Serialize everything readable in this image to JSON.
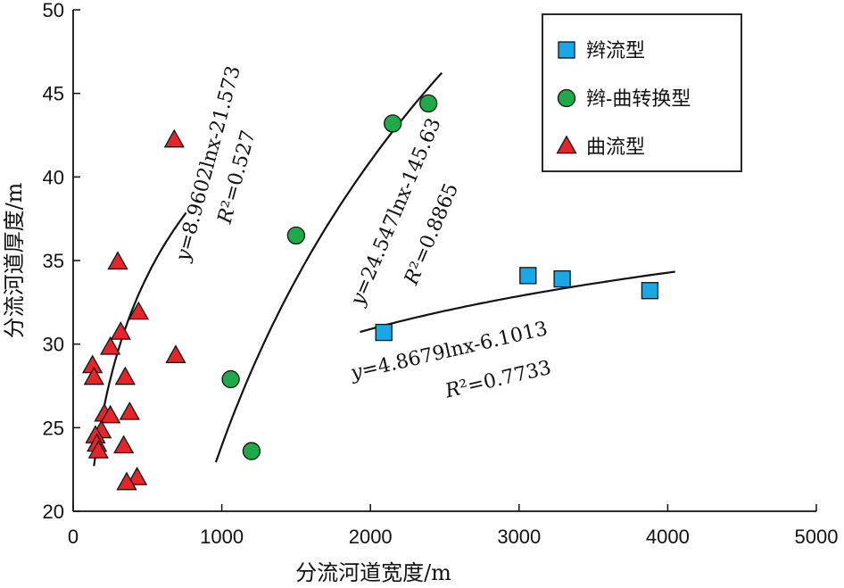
{
  "chart_data": {
    "type": "scatter",
    "xlabel": "分流河道宽度/m",
    "ylabel": "分流河道厚度/m",
    "xlim": [
      0,
      5000
    ],
    "ylim": [
      20,
      50
    ],
    "x_ticks": [
      0,
      1000,
      2000,
      3000,
      4000,
      5000
    ],
    "y_ticks": [
      20,
      25,
      30,
      35,
      40,
      45,
      50
    ],
    "grid": false,
    "legend_position": "top-right",
    "series": [
      {
        "name": "辫流型",
        "marker": "square",
        "color": "#19a7e6",
        "points": [
          [
            2090,
            30.7
          ],
          [
            3060,
            34.1
          ],
          [
            3290,
            33.9
          ],
          [
            3880,
            33.2
          ]
        ],
        "fit": {
          "equation": "y=4.8679lnx-6.1013",
          "r2": "R²=0.7733",
          "a": 4.8679,
          "b": -6.1013,
          "x_range": [
            1930,
            4050
          ]
        }
      },
      {
        "name": "辫-曲转换型",
        "marker": "circle",
        "color": "#1faa4a",
        "points": [
          [
            1060,
            27.9
          ],
          [
            1200,
            23.6
          ],
          [
            1500,
            36.5
          ],
          [
            2150,
            43.2
          ],
          [
            2390,
            44.4
          ]
        ],
        "fit": {
          "equation": "y=24.547lnx-145.63",
          "r2": "R²=0.8865",
          "a": 24.547,
          "b": -145.63,
          "x_range": [
            960,
            2480
          ]
        }
      },
      {
        "name": "曲流型",
        "marker": "triangle",
        "color": "#e8242b",
        "points": [
          [
            680,
            42.2
          ],
          [
            300,
            34.9
          ],
          [
            440,
            31.9
          ],
          [
            320,
            30.7
          ],
          [
            250,
            29.8
          ],
          [
            690,
            29.3
          ],
          [
            130,
            28.7
          ],
          [
            140,
            28.0
          ],
          [
            350,
            28.0
          ],
          [
            380,
            25.9
          ],
          [
            210,
            25.8
          ],
          [
            250,
            25.7
          ],
          [
            190,
            24.8
          ],
          [
            150,
            24.5
          ],
          [
            160,
            24.0
          ],
          [
            340,
            23.9
          ],
          [
            170,
            23.6
          ],
          [
            430,
            22.0
          ],
          [
            360,
            21.7
          ]
        ],
        "fit": {
          "equation": "y=8.9602lnx-21.573",
          "r2": "R²=0.527",
          "a": 8.9602,
          "b": -21.573,
          "x_range": [
            140,
            760
          ]
        }
      }
    ]
  }
}
